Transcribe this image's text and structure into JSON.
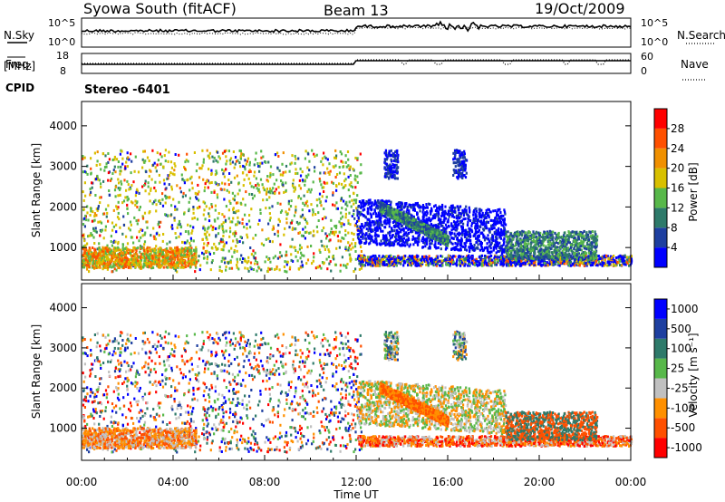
{
  "header": {
    "station": "Syowa South (fitACF)",
    "beam": "Beam 13",
    "date": "19/Oct/2009"
  },
  "side_labels": {
    "nsky": "N.Sky",
    "freq": "Freq.",
    "freq_unit": "[MHz]",
    "cpid": "CPID",
    "nsearch": "N.Search",
    "nave": "Nave"
  },
  "cpid_text": "Stereo  -6401",
  "colors": {
    "power": [
      "#0000ff",
      "#1e3fa0",
      "#2e7a6a",
      "#58b84a",
      "#d8c000",
      "#f09000",
      "#ff5000",
      "#ff0000"
    ],
    "velocity": [
      "#ff0000",
      "#ff5000",
      "#ff9000",
      "#c0c0c0",
      "#58b84a",
      "#2e7a6a",
      "#1e3fa0",
      "#0000ff"
    ]
  },
  "chart_data": [
    {
      "type": "line",
      "name": "noise",
      "series": [
        {
          "name": "N.Sky"
        },
        {
          "name": "N.Search"
        }
      ],
      "yticks_left": [
        "10^5",
        "10^0"
      ],
      "yticks_right": [
        "10^5",
        "10^0"
      ]
    },
    {
      "type": "line",
      "name": "frequency",
      "series": [
        {
          "name": "Freq."
        },
        {
          "name": "Nave"
        }
      ],
      "yticks_left": [
        "18",
        "8"
      ],
      "yticks_right": [
        "60",
        "0"
      ]
    },
    {
      "type": "heatmap",
      "name": "power",
      "ylabel": "Slant Range [km]",
      "yticks": [
        "1000",
        "2000",
        "3000",
        "4000"
      ],
      "ylim": [
        200,
        4600
      ],
      "colorbar_label": "Power [dB]",
      "colorbar_ticks": [
        "4",
        "8",
        "12",
        "16",
        "20",
        "24",
        "28"
      ]
    },
    {
      "type": "heatmap",
      "name": "velocity",
      "ylabel": "Slant Range [km]",
      "yticks": [
        "1000",
        "2000",
        "3000",
        "4000"
      ],
      "ylim": [
        200,
        4600
      ],
      "colorbar_label": "Velocity [m s⁻¹]",
      "colorbar_ticks": [
        "1000",
        "500",
        "100",
        "25",
        "-25",
        "-100",
        "-500",
        "-1000"
      ]
    }
  ],
  "xaxis": {
    "label": "Time UT",
    "ticks": [
      "00:00",
      "04:00",
      "08:00",
      "12:00",
      "16:00",
      "20:00",
      "00:00"
    ]
  }
}
